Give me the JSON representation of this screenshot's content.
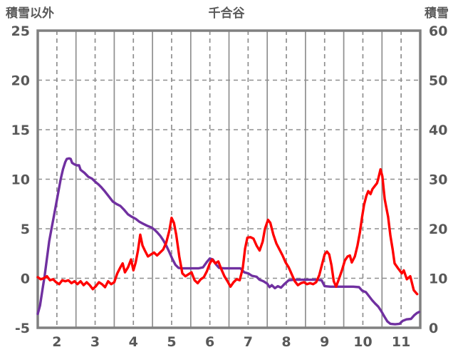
{
  "header": {
    "left_axis_title": "積雪以外",
    "title": "千合谷",
    "right_axis_title": "積雪"
  },
  "chart_data": {
    "type": "line",
    "title": "千合谷",
    "left_axis": {
      "label": "積雪以外",
      "ticks": [
        25,
        20,
        15,
        10,
        5,
        0,
        -5
      ],
      "range": [
        -5,
        25
      ]
    },
    "right_axis": {
      "label": "積雪",
      "ticks": [
        60,
        50,
        40,
        30,
        20,
        10,
        0
      ],
      "range": [
        0,
        60
      ]
    },
    "x_axis": {
      "tick_labels": [
        "2",
        "3",
        "4",
        "5",
        "6",
        "7",
        "8",
        "9",
        "10",
        "11"
      ],
      "range_months": [
        2,
        12
      ],
      "major_grid": "solid-at-month-start",
      "minor_grid": "dashed-at-mid-month",
      "labels_centered_mid_month": true
    },
    "legend": "none",
    "colors": {
      "frame": "#808080",
      "grid": "#8f8f8f",
      "text": "#595959",
      "series_red": "#FF0000",
      "series_purple": "#7030A0",
      "background": "#FFFFFF"
    },
    "series": [
      {
        "name": "積雪",
        "axis": "right",
        "color": "#7030A0",
        "points": [
          [
            2.0,
            2.8
          ],
          [
            2.06,
            4.5
          ],
          [
            2.12,
            7.5
          ],
          [
            2.18,
            10.5
          ],
          [
            2.24,
            14.0
          ],
          [
            2.3,
            17.5
          ],
          [
            2.36,
            20.0
          ],
          [
            2.42,
            22.5
          ],
          [
            2.48,
            25.0
          ],
          [
            2.54,
            27.5
          ],
          [
            2.6,
            30.0
          ],
          [
            2.66,
            32.0
          ],
          [
            2.72,
            33.5
          ],
          [
            2.76,
            34.1
          ],
          [
            2.82,
            34.2
          ],
          [
            2.86,
            34.1
          ],
          [
            2.9,
            33.3
          ],
          [
            2.96,
            33.0
          ],
          [
            3.02,
            32.8
          ],
          [
            3.08,
            32.8
          ],
          [
            3.12,
            31.9
          ],
          [
            3.22,
            31.3
          ],
          [
            3.32,
            30.5
          ],
          [
            3.42,
            30.1
          ],
          [
            3.5,
            29.5
          ],
          [
            3.58,
            29.0
          ],
          [
            3.66,
            28.4
          ],
          [
            3.76,
            27.5
          ],
          [
            3.86,
            26.5
          ],
          [
            3.96,
            25.5
          ],
          [
            4.06,
            25.0
          ],
          [
            4.16,
            24.6
          ],
          [
            4.26,
            23.8
          ],
          [
            4.36,
            22.9
          ],
          [
            4.46,
            22.4
          ],
          [
            4.56,
            22.0
          ],
          [
            4.66,
            21.4
          ],
          [
            4.76,
            21.0
          ],
          [
            4.86,
            20.6
          ],
          [
            4.96,
            20.3
          ],
          [
            5.04,
            19.9
          ],
          [
            5.12,
            19.3
          ],
          [
            5.2,
            18.6
          ],
          [
            5.28,
            17.7
          ],
          [
            5.36,
            16.6
          ],
          [
            5.44,
            15.3
          ],
          [
            5.52,
            13.9
          ],
          [
            5.6,
            12.7
          ],
          [
            5.68,
            12.1
          ],
          [
            5.76,
            12.0
          ],
          [
            5.9,
            12.0
          ],
          [
            6.05,
            12.0
          ],
          [
            6.2,
            12.0
          ],
          [
            6.32,
            12.2
          ],
          [
            6.42,
            13.3
          ],
          [
            6.5,
            14.0
          ],
          [
            6.58,
            13.8
          ],
          [
            6.66,
            12.8
          ],
          [
            6.74,
            12.1
          ],
          [
            6.88,
            12.0
          ],
          [
            7.02,
            12.0
          ],
          [
            7.16,
            12.0
          ],
          [
            7.3,
            12.0
          ],
          [
            7.4,
            11.2
          ],
          [
            7.5,
            11.0
          ],
          [
            7.6,
            10.5
          ],
          [
            7.72,
            10.3
          ],
          [
            7.8,
            9.7
          ],
          [
            7.9,
            9.4
          ],
          [
            8.0,
            8.9
          ],
          [
            8.06,
            8.2
          ],
          [
            8.12,
            8.6
          ],
          [
            8.2,
            8.0
          ],
          [
            8.28,
            8.4
          ],
          [
            8.36,
            8.1
          ],
          [
            8.46,
            8.9
          ],
          [
            8.56,
            9.6
          ],
          [
            8.7,
            9.7
          ],
          [
            8.85,
            9.7
          ],
          [
            9.0,
            9.7
          ],
          [
            9.15,
            9.7
          ],
          [
            9.3,
            9.7
          ],
          [
            9.42,
            9.6
          ],
          [
            9.5,
            8.4
          ],
          [
            9.65,
            8.3
          ],
          [
            9.8,
            8.3
          ],
          [
            9.95,
            8.3
          ],
          [
            10.1,
            8.3
          ],
          [
            10.25,
            8.3
          ],
          [
            10.4,
            8.2
          ],
          [
            10.48,
            7.5
          ],
          [
            10.58,
            7.2
          ],
          [
            10.66,
            6.4
          ],
          [
            10.74,
            5.6
          ],
          [
            10.82,
            4.9
          ],
          [
            10.9,
            4.3
          ],
          [
            10.98,
            3.4
          ],
          [
            11.06,
            2.3
          ],
          [
            11.14,
            1.3
          ],
          [
            11.22,
            0.8
          ],
          [
            11.34,
            0.7
          ],
          [
            11.46,
            0.8
          ],
          [
            11.54,
            1.4
          ],
          [
            11.64,
            1.7
          ],
          [
            11.76,
            1.8
          ],
          [
            11.84,
            2.5
          ],
          [
            11.92,
            3.0
          ],
          [
            11.97,
            3.2
          ]
        ]
      },
      {
        "name": "積雪以外",
        "axis": "left",
        "color": "#FF0000",
        "points": [
          [
            2.0,
            0.1
          ],
          [
            2.08,
            -0.1
          ],
          [
            2.16,
            0.0
          ],
          [
            2.24,
            0.2
          ],
          [
            2.32,
            -0.2
          ],
          [
            2.4,
            -0.1
          ],
          [
            2.48,
            -0.4
          ],
          [
            2.56,
            -0.6
          ],
          [
            2.64,
            -0.2
          ],
          [
            2.72,
            -0.3
          ],
          [
            2.8,
            -0.2
          ],
          [
            2.88,
            -0.5
          ],
          [
            2.96,
            -0.3
          ],
          [
            3.04,
            -0.6
          ],
          [
            3.12,
            -0.3
          ],
          [
            3.2,
            -0.7
          ],
          [
            3.28,
            -0.4
          ],
          [
            3.36,
            -0.7
          ],
          [
            3.44,
            -1.1
          ],
          [
            3.52,
            -0.8
          ],
          [
            3.6,
            -0.4
          ],
          [
            3.68,
            -0.6
          ],
          [
            3.76,
            -0.9
          ],
          [
            3.84,
            -0.3
          ],
          [
            3.92,
            -0.6
          ],
          [
            4.0,
            -0.4
          ],
          [
            4.08,
            0.5
          ],
          [
            4.16,
            1.1
          ],
          [
            4.22,
            1.5
          ],
          [
            4.28,
            0.6
          ],
          [
            4.36,
            1.1
          ],
          [
            4.44,
            1.9
          ],
          [
            4.5,
            0.8
          ],
          [
            4.56,
            1.6
          ],
          [
            4.62,
            2.8
          ],
          [
            4.68,
            4.4
          ],
          [
            4.74,
            3.3
          ],
          [
            4.8,
            2.8
          ],
          [
            4.88,
            2.2
          ],
          [
            4.96,
            2.4
          ],
          [
            5.04,
            2.6
          ],
          [
            5.12,
            2.3
          ],
          [
            5.2,
            2.6
          ],
          [
            5.28,
            2.9
          ],
          [
            5.36,
            3.6
          ],
          [
            5.44,
            4.8
          ],
          [
            5.5,
            6.1
          ],
          [
            5.56,
            5.6
          ],
          [
            5.62,
            4.4
          ],
          [
            5.7,
            2.2
          ],
          [
            5.78,
            0.5
          ],
          [
            5.86,
            0.2
          ],
          [
            5.94,
            0.4
          ],
          [
            6.02,
            0.6
          ],
          [
            6.1,
            -0.2
          ],
          [
            6.18,
            -0.5
          ],
          [
            6.26,
            -0.1
          ],
          [
            6.34,
            0.1
          ],
          [
            6.42,
            0.7
          ],
          [
            6.5,
            1.5
          ],
          [
            6.56,
            1.9
          ],
          [
            6.64,
            1.5
          ],
          [
            6.72,
            1.7
          ],
          [
            6.8,
            0.9
          ],
          [
            6.88,
            0.2
          ],
          [
            6.96,
            -0.3
          ],
          [
            7.04,
            -0.85
          ],
          [
            7.12,
            -0.4
          ],
          [
            7.2,
            -0.1
          ],
          [
            7.28,
            -0.2
          ],
          [
            7.36,
            1.0
          ],
          [
            7.42,
            3.0
          ],
          [
            7.48,
            4.1
          ],
          [
            7.56,
            4.15
          ],
          [
            7.64,
            4.0
          ],
          [
            7.72,
            3.3
          ],
          [
            7.8,
            2.8
          ],
          [
            7.88,
            3.7
          ],
          [
            7.94,
            5.0
          ],
          [
            8.02,
            5.9
          ],
          [
            8.08,
            5.6
          ],
          [
            8.16,
            4.4
          ],
          [
            8.24,
            3.5
          ],
          [
            8.32,
            2.9
          ],
          [
            8.4,
            2.3
          ],
          [
            8.48,
            1.6
          ],
          [
            8.56,
            1.1
          ],
          [
            8.64,
            0.4
          ],
          [
            8.72,
            -0.3
          ],
          [
            8.8,
            -0.7
          ],
          [
            8.88,
            -0.5
          ],
          [
            8.96,
            -0.4
          ],
          [
            9.04,
            -0.6
          ],
          [
            9.12,
            -0.5
          ],
          [
            9.2,
            -0.6
          ],
          [
            9.28,
            -0.4
          ],
          [
            9.36,
            0.3
          ],
          [
            9.44,
            1.5
          ],
          [
            9.5,
            2.4
          ],
          [
            9.56,
            2.7
          ],
          [
            9.62,
            2.4
          ],
          [
            9.68,
            1.3
          ],
          [
            9.74,
            -0.3
          ],
          [
            9.8,
            -0.85
          ],
          [
            9.88,
            0.0
          ],
          [
            9.96,
            0.9
          ],
          [
            10.03,
            1.8
          ],
          [
            10.1,
            2.2
          ],
          [
            10.16,
            2.3
          ],
          [
            10.21,
            1.6
          ],
          [
            10.29,
            2.2
          ],
          [
            10.36,
            3.3
          ],
          [
            10.42,
            4.6
          ],
          [
            10.48,
            6.2
          ],
          [
            10.53,
            7.4
          ],
          [
            10.59,
            8.3
          ],
          [
            10.64,
            8.8
          ],
          [
            10.7,
            8.5
          ],
          [
            10.75,
            9.0
          ],
          [
            10.81,
            9.3
          ],
          [
            10.87,
            9.6
          ],
          [
            10.9,
            10.0
          ],
          [
            10.96,
            11.0
          ],
          [
            11.01,
            10.3
          ],
          [
            11.07,
            8.0
          ],
          [
            11.11,
            7.2
          ],
          [
            11.16,
            6.2
          ],
          [
            11.22,
            4.3
          ],
          [
            11.28,
            2.9
          ],
          [
            11.33,
            1.5
          ],
          [
            11.42,
            1.0
          ],
          [
            11.52,
            0.5
          ],
          [
            11.57,
            0.8
          ],
          [
            11.65,
            -0.1
          ],
          [
            11.74,
            0.2
          ],
          [
            11.83,
            -1.2
          ],
          [
            11.92,
            -1.6
          ]
        ]
      }
    ]
  }
}
